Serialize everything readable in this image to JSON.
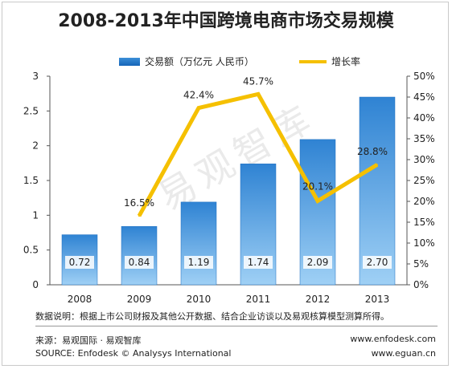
{
  "title": "2008-2013年中国跨境电商市场交易规模",
  "legend": {
    "bar": "交易额（万亿元 人民币）",
    "line": "增长率"
  },
  "chart_data": {
    "type": "bar+line",
    "title": "2008-2013年中国跨境电商市场交易规模",
    "categories": [
      "2008",
      "2009",
      "2010",
      "2011",
      "2012",
      "2013"
    ],
    "series": [
      {
        "name": "交易额（万亿元 人民币）",
        "type": "bar",
        "axis": "left",
        "values": [
          0.72,
          0.84,
          1.19,
          1.74,
          2.09,
          2.7
        ],
        "labels": [
          "0.72",
          "0.84",
          "1.19",
          "1.74",
          "2.09",
          "2.70"
        ]
      },
      {
        "name": "增长率",
        "type": "line",
        "axis": "right",
        "values": [
          null,
          16.5,
          42.4,
          45.7,
          20.1,
          28.8
        ],
        "labels": [
          "",
          "16.5%",
          "42.4%",
          "45.7%",
          "20.1%",
          "28.8%"
        ]
      }
    ],
    "y_left": {
      "ylim": [
        0,
        3
      ],
      "ticks": [
        "0",
        "0.5",
        "1",
        "1.5",
        "2",
        "2.5",
        "3"
      ]
    },
    "y_right": {
      "ylim": [
        0,
        50
      ],
      "ticks": [
        "0%",
        "5%",
        "10%",
        "15%",
        "20%",
        "25%",
        "30%",
        "35%",
        "40%",
        "45%",
        "50%"
      ]
    },
    "grid": false,
    "legend_position": "top",
    "colors": {
      "bar_top": "#3c8fd8",
      "bar_bottom": "#1565b8",
      "line": "#f5c000"
    }
  },
  "note": "数据说明：根据上市公司财报及其他公开数据、结合企业访谈以及易观核算模型测算所得。",
  "source_cn": "来源：易观国际 · 易观智库",
  "source_en": "SOURCE: Enfodesk © Analysys International",
  "url1": "www.enfodesk.com",
  "url2": "www.eguan.cn",
  "watermark": "易观智库"
}
